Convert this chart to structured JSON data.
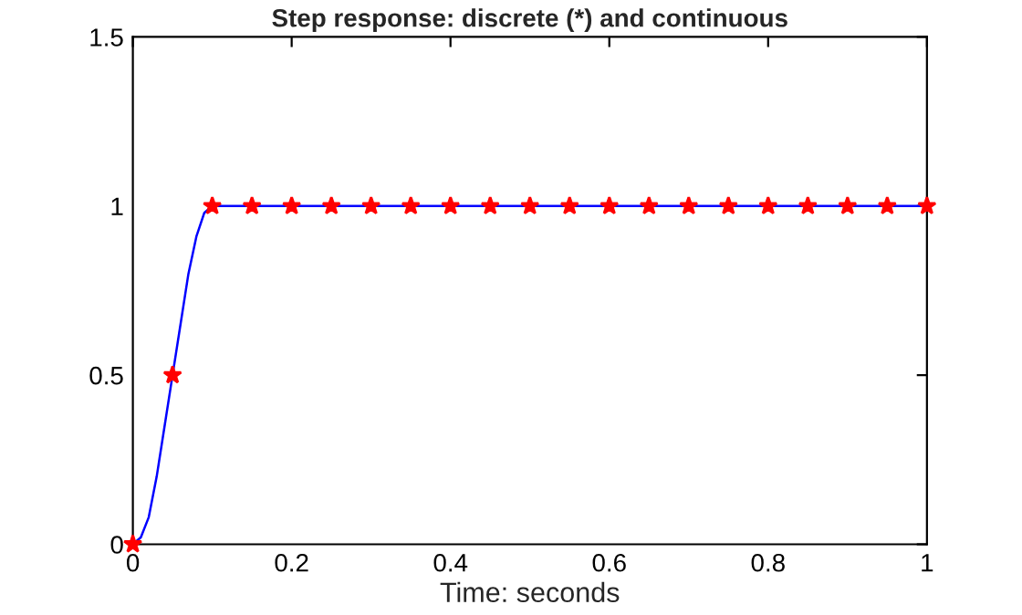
{
  "chart_data": {
    "type": "line",
    "title": "Step response: discrete (*) and continuous",
    "xlabel": "Time: seconds",
    "xlim": [
      0,
      1
    ],
    "ylim": [
      0,
      1.5
    ],
    "xticks": [
      0,
      0.2,
      0.4,
      0.6,
      0.8,
      1
    ],
    "yticks": [
      0,
      0.5,
      1,
      1.5
    ],
    "grid": false,
    "legend": false,
    "series": [
      {
        "color": "#0000ff",
        "marker": "none",
        "x": [
          0,
          0.01,
          0.02,
          0.03,
          0.04,
          0.05,
          0.06,
          0.07,
          0.08,
          0.09,
          0.1,
          0.2,
          0.4,
          0.6,
          0.8,
          1
        ],
        "values": [
          0,
          0.02,
          0.08,
          0.2,
          0.35,
          0.5,
          0.65,
          0.8,
          0.91,
          0.98,
          1,
          1,
          1,
          1,
          1,
          1
        ]
      },
      {
        "type": "scatter",
        "color": "#ff0000",
        "marker": "star",
        "x": [
          0,
          0.05,
          0.1,
          0.15,
          0.2,
          0.25,
          0.3,
          0.35,
          0.4,
          0.45,
          0.5,
          0.55,
          0.6,
          0.65,
          0.7,
          0.75,
          0.8,
          0.85,
          0.9,
          0.95,
          1
        ],
        "values": [
          0,
          0.5,
          1,
          1,
          1,
          1,
          1,
          1,
          1,
          1,
          1,
          1,
          1,
          1,
          1,
          1,
          1,
          1,
          1,
          1,
          1
        ]
      }
    ]
  }
}
